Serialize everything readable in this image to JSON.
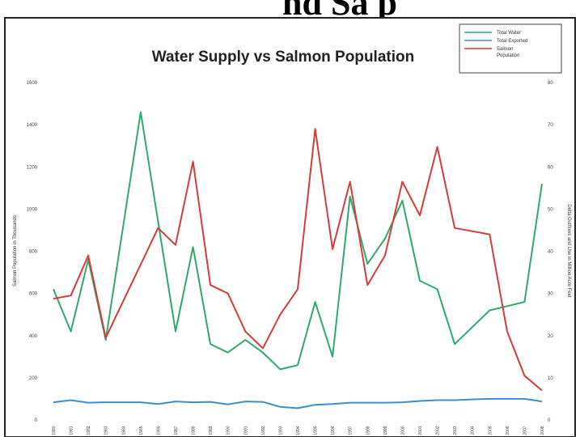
{
  "page": {
    "header_fragment": "nd Sa    p"
  },
  "chart_data": {
    "type": "line",
    "title": "Water Supply vs Salmon Population",
    "ylabel_left": "Salmon Population in Thousands",
    "ylabel_right": "Delta Outflows and Use in Million Acre Feet",
    "y_left_range": [
      0,
      1600
    ],
    "y_right_range": [
      0,
      80
    ],
    "y_left_ticks": [
      "0",
      "200",
      "400",
      "600",
      "800",
      "1000",
      "1200",
      "1400",
      "1600"
    ],
    "y_right_ticks": [
      "0",
      "10",
      "20",
      "30",
      "40",
      "50",
      "60",
      "70",
      "80"
    ],
    "x_tick_labels": [
      "1980",
      "1981",
      "1982",
      "1983",
      "1984",
      "1985",
      "1986",
      "1987",
      "1988",
      "1989",
      "1990",
      "1991",
      "1992",
      "1993",
      "1994",
      "1995",
      "1996",
      "1997",
      "1998",
      "1999",
      "2000",
      "2001",
      "2002",
      "2003",
      "2004",
      "2005",
      "2006",
      "2007",
      "2008"
    ],
    "legend_position": "top-right",
    "series": [
      {
        "name": "Total Water",
        "axis": "right",
        "color": "#2eaa6a",
        "values": [
          31,
          21,
          38,
          19,
          null,
          73,
          null,
          21,
          41,
          18,
          16,
          19,
          16,
          12,
          13,
          28,
          15,
          53,
          37,
          43,
          52,
          33,
          31,
          18,
          null,
          26,
          27,
          28,
          56
        ]
      },
      {
        "name": "Total Exported",
        "axis": "right",
        "color": "#3b8fcf",
        "values": [
          4.2,
          4.7,
          4.1,
          4.2,
          4.2,
          4.2,
          3.8,
          4.4,
          4.2,
          4.3,
          3.7,
          4.4,
          4.3,
          3.1,
          2.8,
          3.6,
          3.8,
          4.1,
          4.1,
          4.1,
          4.2,
          4.5,
          4.7,
          4.7,
          4.9,
          5.0,
          5.0,
          5.0,
          4.4
        ]
      },
      {
        "name": "Salmon Population",
        "axis": "left",
        "color": "#d83b3b",
        "values": [
          575,
          590,
          780,
          390,
          null,
          null,
          910,
          830,
          1225,
          640,
          600,
          420,
          340,
          500,
          620,
          1380,
          810,
          1130,
          640,
          780,
          1130,
          970,
          1295,
          910,
          895,
          880,
          420,
          210,
          140
        ]
      }
    ]
  }
}
